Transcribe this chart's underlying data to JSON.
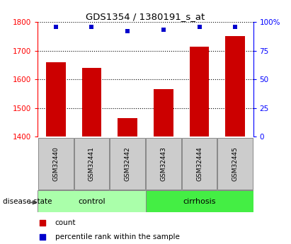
{
  "title": "GDS1354 / 1380191_s_at",
  "samples": [
    "GSM32440",
    "GSM32441",
    "GSM32442",
    "GSM32443",
    "GSM32444",
    "GSM32445"
  ],
  "counts": [
    1660,
    1640,
    1465,
    1565,
    1715,
    1750
  ],
  "percentiles": [
    96,
    96,
    92,
    93,
    96,
    96
  ],
  "ylim_left": [
    1400,
    1800
  ],
  "ylim_right": [
    0,
    100
  ],
  "yticks_left": [
    1400,
    1500,
    1600,
    1700,
    1800
  ],
  "yticks_right": [
    0,
    25,
    50,
    75,
    100
  ],
  "bar_color": "#cc0000",
  "dot_color": "#0000cc",
  "control_color": "#aaffaa",
  "cirrhosis_color": "#44ee44",
  "sample_box_color": "#cccccc",
  "background_color": "#ffffff",
  "legend_items": [
    {
      "color": "#cc0000",
      "label": "count"
    },
    {
      "color": "#0000cc",
      "label": "percentile rank within the sample"
    }
  ]
}
